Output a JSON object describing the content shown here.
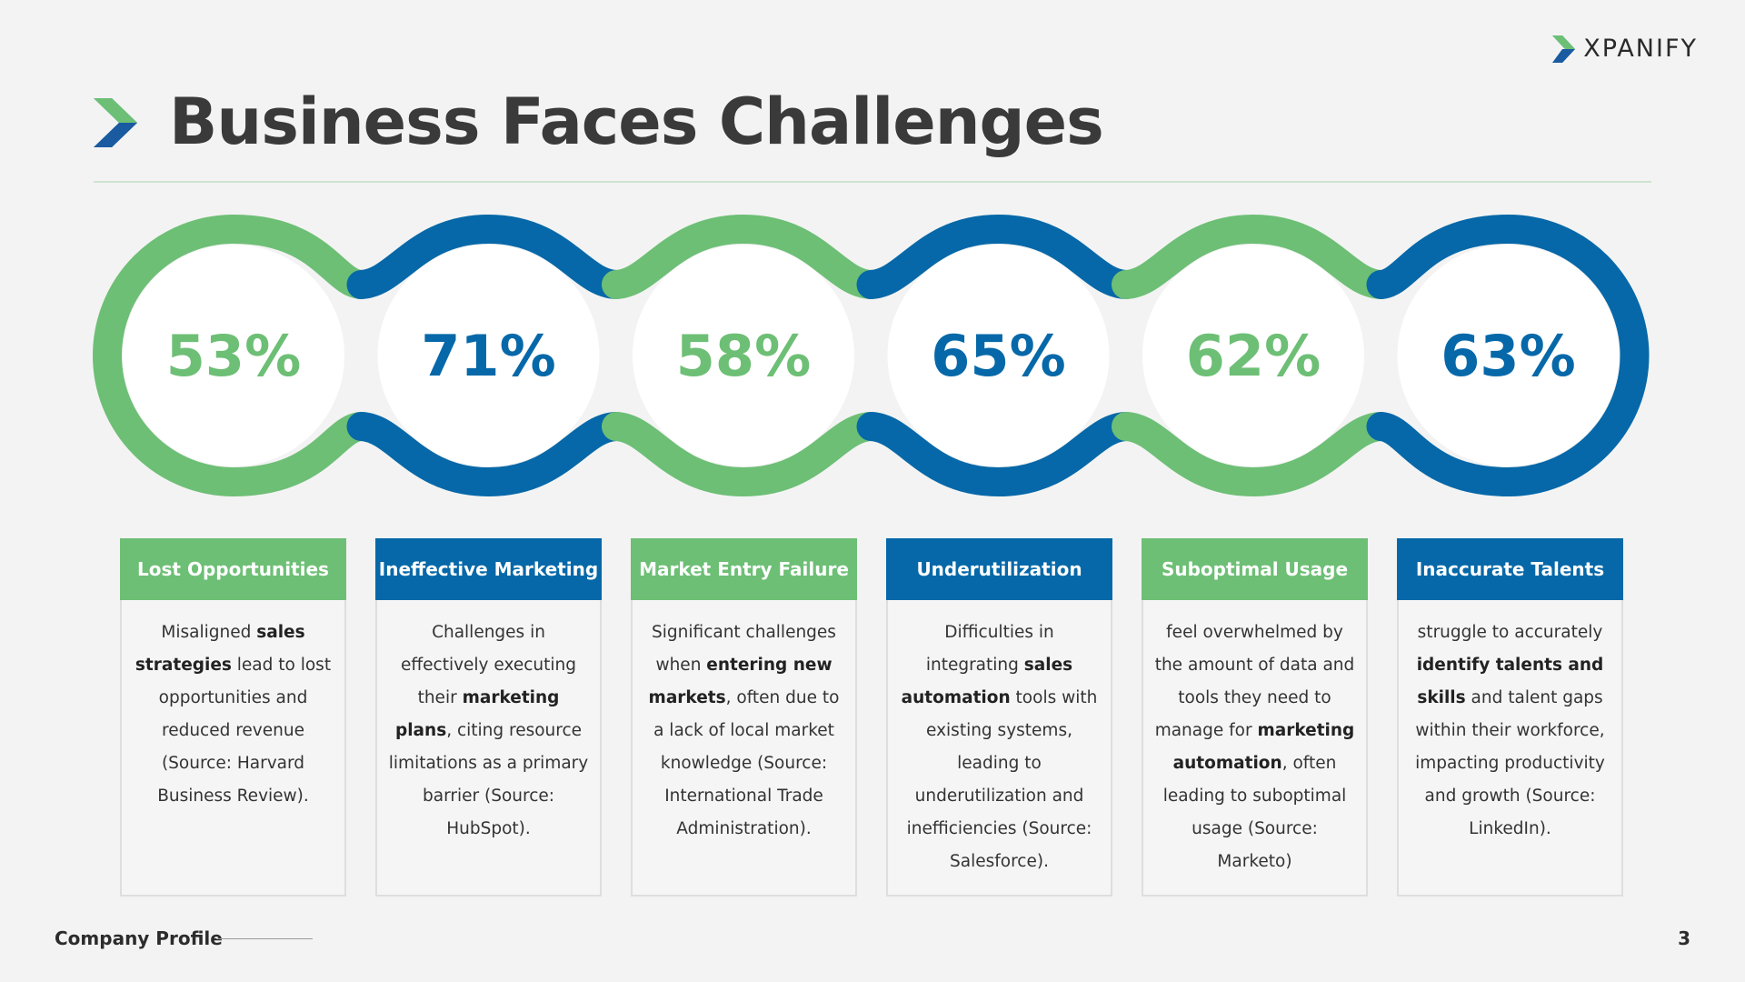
{
  "header": {
    "brand": "XPANIFY",
    "title": "Business Faces Challenges"
  },
  "colors": {
    "green": "#6dbf75",
    "blue": "#0668a8",
    "text": "#333333"
  },
  "stats": [
    {
      "value": "53%",
      "color": "green"
    },
    {
      "value": "71%",
      "color": "blue"
    },
    {
      "value": "58%",
      "color": "green"
    },
    {
      "value": "65%",
      "color": "blue"
    },
    {
      "value": "62%",
      "color": "green"
    },
    {
      "value": "63%",
      "color": "blue"
    }
  ],
  "cards": [
    {
      "title": "Lost Opportunities",
      "color": "green",
      "parts": [
        {
          "t": "Misaligned "
        },
        {
          "t": "sales strategies",
          "b": true
        },
        {
          "t": " lead to lost opportunities and reduced revenue (Source: Harvard Business Review)."
        }
      ]
    },
    {
      "title": "Ineffective Marketing",
      "color": "blue",
      "parts": [
        {
          "t": "Challenges in effectively executing their "
        },
        {
          "t": "marketing plans",
          "b": true
        },
        {
          "t": ", citing resource limitations as a primary barrier (Source: HubSpot)."
        }
      ]
    },
    {
      "title": "Market Entry Failure",
      "color": "green",
      "parts": [
        {
          "t": "Significant challenges when "
        },
        {
          "t": "entering new markets",
          "b": true
        },
        {
          "t": ", often due to a lack of local market knowledge (Source: International Trade Administration)."
        }
      ]
    },
    {
      "title": "Underutilization",
      "color": "blue",
      "parts": [
        {
          "t": "Difficulties in integrating "
        },
        {
          "t": "sales automation",
          "b": true
        },
        {
          "t": " tools with existing systems, leading to underutilization and inefficiencies (Source: Salesforce)."
        }
      ]
    },
    {
      "title": "Suboptimal Usage",
      "color": "green",
      "parts": [
        {
          "t": "feel overwhelmed by the amount of data and tools  they need to manage for "
        },
        {
          "t": "marketing automation",
          "b": true
        },
        {
          "t": ", often leading to suboptimal usage (Source: Marketo)"
        }
      ]
    },
    {
      "title": "Inaccurate Talents",
      "color": "blue",
      "parts": [
        {
          "t": "struggle to accurately "
        },
        {
          "t": "identify talents and skills",
          "b": true
        },
        {
          "t": " and talent gaps within their workforce, impacting productivity and growth (Source: LinkedIn)."
        }
      ]
    }
  ],
  "footer": {
    "label": "Company Profile",
    "page": "3"
  }
}
